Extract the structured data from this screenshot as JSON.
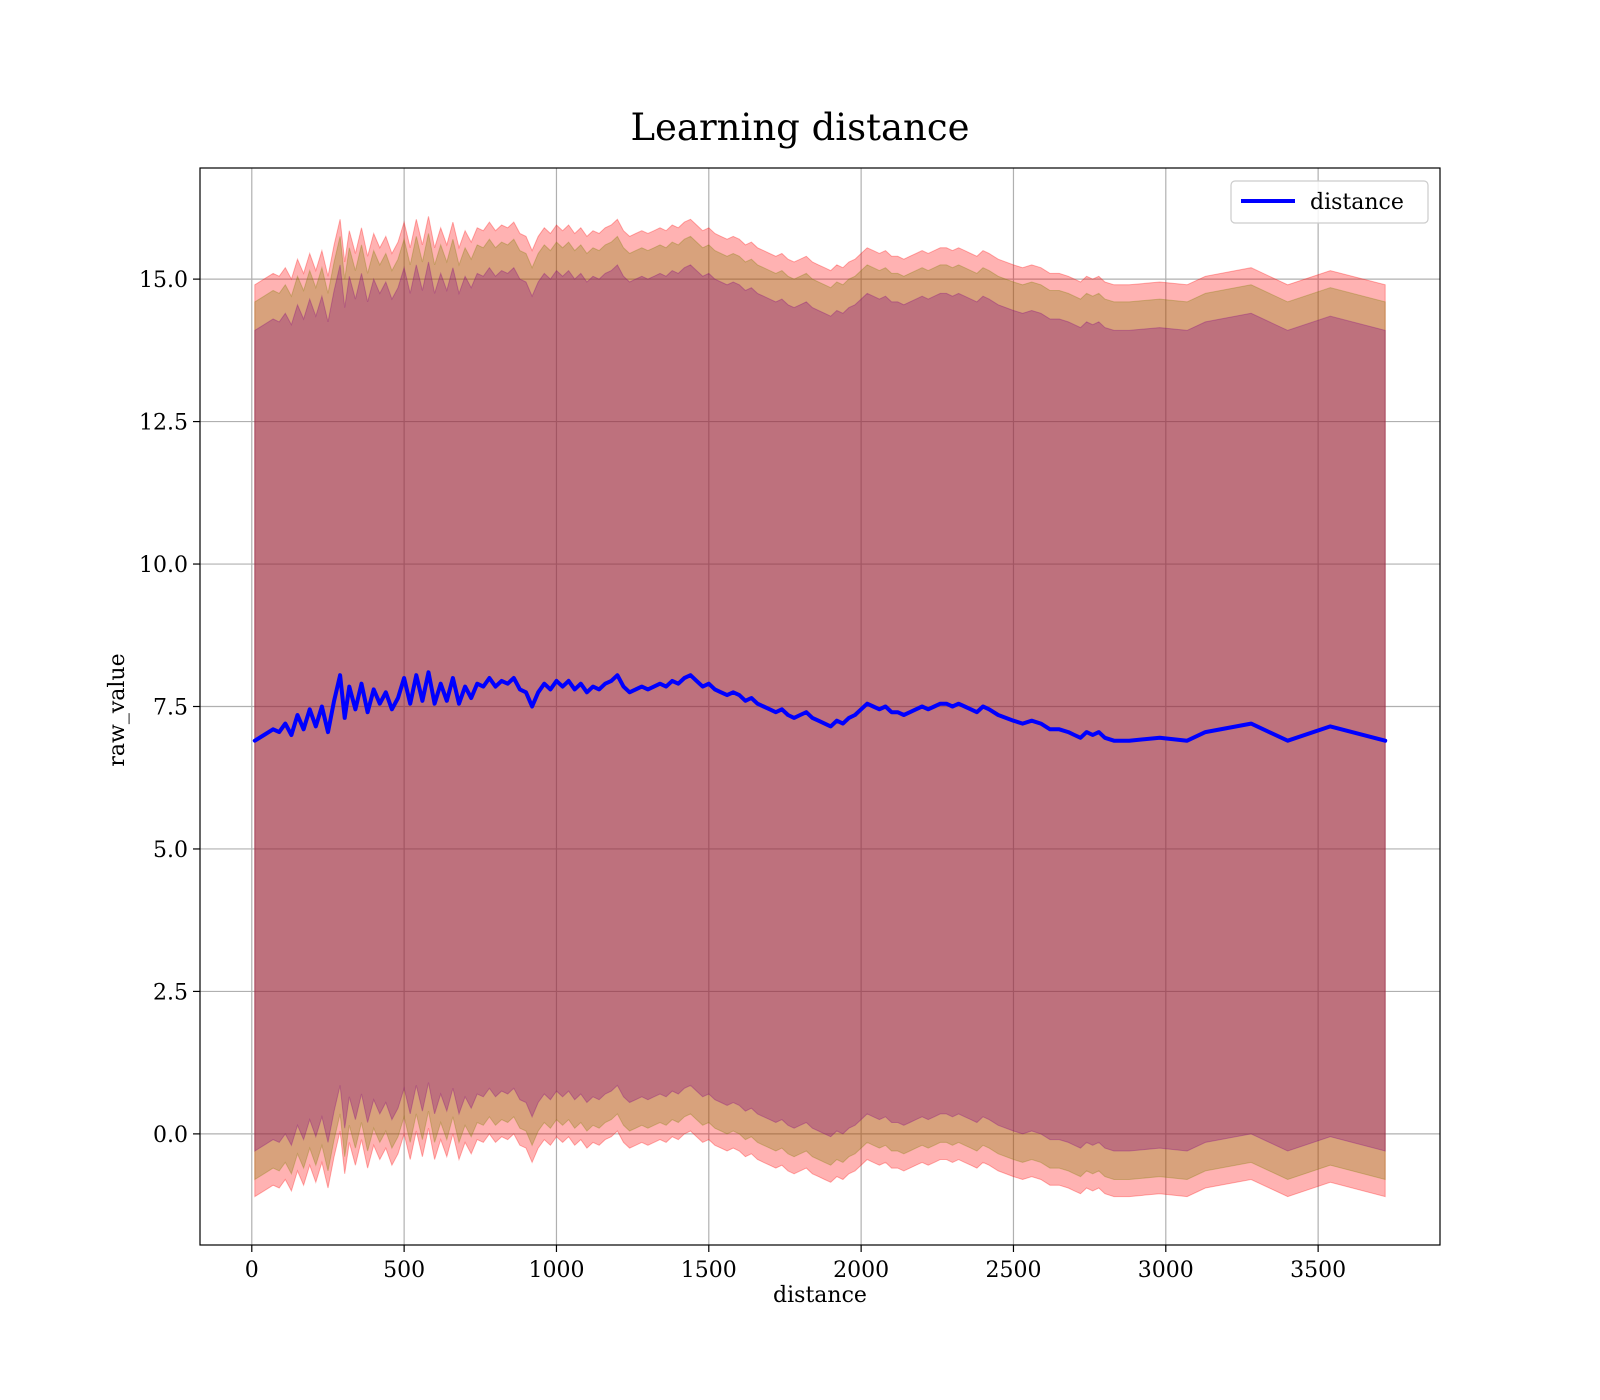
{
  "chart_data": {
    "type": "line",
    "title": "Learning distance",
    "xlabel": "distance",
    "ylabel": "raw_value",
    "xlim": [
      -170,
      3900
    ],
    "ylim": [
      -1.95,
      16.95
    ],
    "grid": true,
    "legend_position": "top-right",
    "x_ticks": [
      0,
      500,
      1000,
      1500,
      2000,
      2500,
      3000,
      3500
    ],
    "x_tick_labels": [
      "0",
      "500",
      "1000",
      "1500",
      "2000",
      "2500",
      "3000",
      "3500"
    ],
    "y_ticks": [
      0.0,
      2.5,
      5.0,
      7.5,
      10.0,
      12.5,
      15.0
    ],
    "y_tick_labels": [
      "0.0",
      "2.5",
      "5.0",
      "7.5",
      "10.0",
      "12.5",
      "15.0"
    ],
    "colors": {
      "line": "#0000ff",
      "band_outer": "#ff0000",
      "band_middle": "#7f7f00",
      "band_inner": "#800080",
      "grid": "#b0b0b0"
    },
    "series": [
      {
        "name": "distance",
        "x": [
          10,
          40,
          70,
          90,
          110,
          130,
          150,
          170,
          190,
          210,
          230,
          250,
          270,
          290,
          305,
          320,
          340,
          360,
          380,
          400,
          420,
          440,
          460,
          480,
          500,
          520,
          540,
          560,
          580,
          600,
          620,
          640,
          660,
          680,
          700,
          720,
          740,
          760,
          780,
          800,
          820,
          840,
          860,
          880,
          900,
          920,
          940,
          960,
          980,
          1000,
          1020,
          1040,
          1060,
          1080,
          1100,
          1120,
          1140,
          1160,
          1180,
          1200,
          1220,
          1240,
          1260,
          1280,
          1300,
          1320,
          1340,
          1360,
          1380,
          1400,
          1420,
          1440,
          1460,
          1480,
          1500,
          1520,
          1540,
          1560,
          1580,
          1600,
          1620,
          1640,
          1660,
          1680,
          1700,
          1720,
          1740,
          1760,
          1780,
          1800,
          1820,
          1840,
          1860,
          1880,
          1900,
          1920,
          1940,
          1960,
          1980,
          2000,
          2020,
          2040,
          2060,
          2080,
          2100,
          2120,
          2140,
          2160,
          2180,
          2200,
          2220,
          2240,
          2260,
          2280,
          2300,
          2320,
          2340,
          2360,
          2380,
          2400,
          2420,
          2450,
          2500,
          2530,
          2560,
          2590,
          2620,
          2650,
          2680,
          2700,
          2720,
          2740,
          2760,
          2780,
          2800,
          2830,
          2880,
          2980,
          3070,
          3130,
          3280,
          3400,
          3540,
          3720
        ],
        "y": [
          6.9,
          7.0,
          7.1,
          7.05,
          7.2,
          7.0,
          7.35,
          7.1,
          7.45,
          7.15,
          7.5,
          7.05,
          7.6,
          8.05,
          7.3,
          7.85,
          7.45,
          7.9,
          7.4,
          7.8,
          7.55,
          7.75,
          7.45,
          7.65,
          8.0,
          7.55,
          8.05,
          7.6,
          8.1,
          7.55,
          7.9,
          7.6,
          8.0,
          7.55,
          7.85,
          7.65,
          7.9,
          7.85,
          8.0,
          7.85,
          7.95,
          7.9,
          8.0,
          7.8,
          7.75,
          7.5,
          7.75,
          7.9,
          7.8,
          7.95,
          7.85,
          7.95,
          7.8,
          7.9,
          7.75,
          7.85,
          7.8,
          7.9,
          7.95,
          8.05,
          7.85,
          7.75,
          7.8,
          7.85,
          7.8,
          7.85,
          7.9,
          7.85,
          7.95,
          7.9,
          8.0,
          8.05,
          7.95,
          7.85,
          7.9,
          7.8,
          7.75,
          7.7,
          7.75,
          7.7,
          7.6,
          7.65,
          7.55,
          7.5,
          7.45,
          7.4,
          7.45,
          7.35,
          7.3,
          7.35,
          7.4,
          7.3,
          7.25,
          7.2,
          7.15,
          7.25,
          7.2,
          7.3,
          7.35,
          7.45,
          7.55,
          7.5,
          7.45,
          7.5,
          7.4,
          7.4,
          7.35,
          7.4,
          7.45,
          7.5,
          7.45,
          7.5,
          7.55,
          7.55,
          7.5,
          7.55,
          7.5,
          7.45,
          7.4,
          7.5,
          7.45,
          7.35,
          7.25,
          7.2,
          7.25,
          7.2,
          7.1,
          7.1,
          7.05,
          7.0,
          6.95,
          7.05,
          7.0,
          7.05,
          6.95,
          6.9,
          6.9,
          6.95,
          6.9,
          7.05,
          7.2,
          6.9,
          7.15,
          6.9
        ]
      }
    ],
    "bands": [
      {
        "color": "red",
        "upper_offset": 8.0,
        "lower_offset": 8.0
      },
      {
        "color": "olive",
        "upper_offset": 7.7,
        "lower_offset": 7.7
      },
      {
        "color": "purple",
        "upper_offset": 7.2,
        "lower_offset": 7.2
      }
    ]
  }
}
